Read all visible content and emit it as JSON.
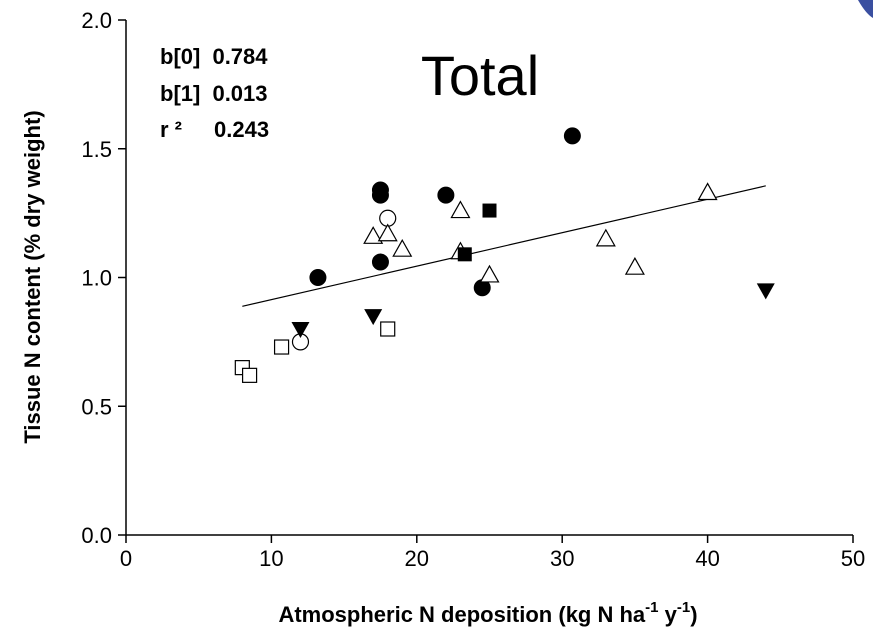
{
  "chart_data": {
    "type": "scatter",
    "title": "Total",
    "xlabel_parts": [
      "Atmospheric N deposition (kg N ha",
      "-1",
      " y",
      "-1",
      ")"
    ],
    "ylabel": "Tissue N content (% dry weight)",
    "xlim": [
      0,
      50
    ],
    "ylim": [
      0.0,
      2.0
    ],
    "xticks": [
      "0",
      "10",
      "20",
      "30",
      "40",
      "50"
    ],
    "yticks": [
      "0.0",
      "0.5",
      "1.0",
      "1.5",
      "2.0"
    ],
    "grid": false,
    "stats": [
      {
        "label": "b[0]",
        "value": "0.784"
      },
      {
        "label": "b[1]",
        "value": "0.013"
      },
      {
        "label": "r ²",
        "value": "0.243"
      }
    ],
    "regression": {
      "intercept": 0.784,
      "slope": 0.013,
      "x_range": [
        8,
        44
      ]
    },
    "series": [
      {
        "marker": "filled-circle",
        "points": [
          [
            13.2,
            1.0
          ],
          [
            17.5,
            1.06
          ],
          [
            17.5,
            1.32
          ],
          [
            17.5,
            1.34
          ],
          [
            22.0,
            1.32
          ],
          [
            24.5,
            0.96
          ],
          [
            30.7,
            1.55
          ]
        ]
      },
      {
        "marker": "open-circle",
        "points": [
          [
            12.0,
            0.75
          ],
          [
            18.0,
            1.23
          ]
        ]
      },
      {
        "marker": "filled-triangle-down",
        "points": [
          [
            12.0,
            0.8
          ],
          [
            17.0,
            0.85
          ],
          [
            44.0,
            0.95
          ]
        ]
      },
      {
        "marker": "open-triangle-up",
        "points": [
          [
            17.0,
            1.16
          ],
          [
            18.0,
            1.17
          ],
          [
            19.0,
            1.11
          ],
          [
            23.0,
            1.1
          ],
          [
            23.0,
            1.26
          ],
          [
            25.0,
            1.01
          ],
          [
            33.0,
            1.15
          ],
          [
            35.0,
            1.04
          ],
          [
            40.0,
            1.33
          ]
        ]
      },
      {
        "marker": "filled-square",
        "points": [
          [
            23.3,
            1.09
          ],
          [
            25.0,
            1.26
          ]
        ]
      },
      {
        "marker": "open-square",
        "points": [
          [
            8.0,
            0.65
          ],
          [
            8.5,
            0.62
          ],
          [
            10.7,
            0.73
          ],
          [
            18.0,
            0.8
          ]
        ]
      }
    ]
  },
  "colors": {
    "ink": "#000000",
    "background": "#ffffff",
    "corner_accent": "#3a4fa0"
  }
}
